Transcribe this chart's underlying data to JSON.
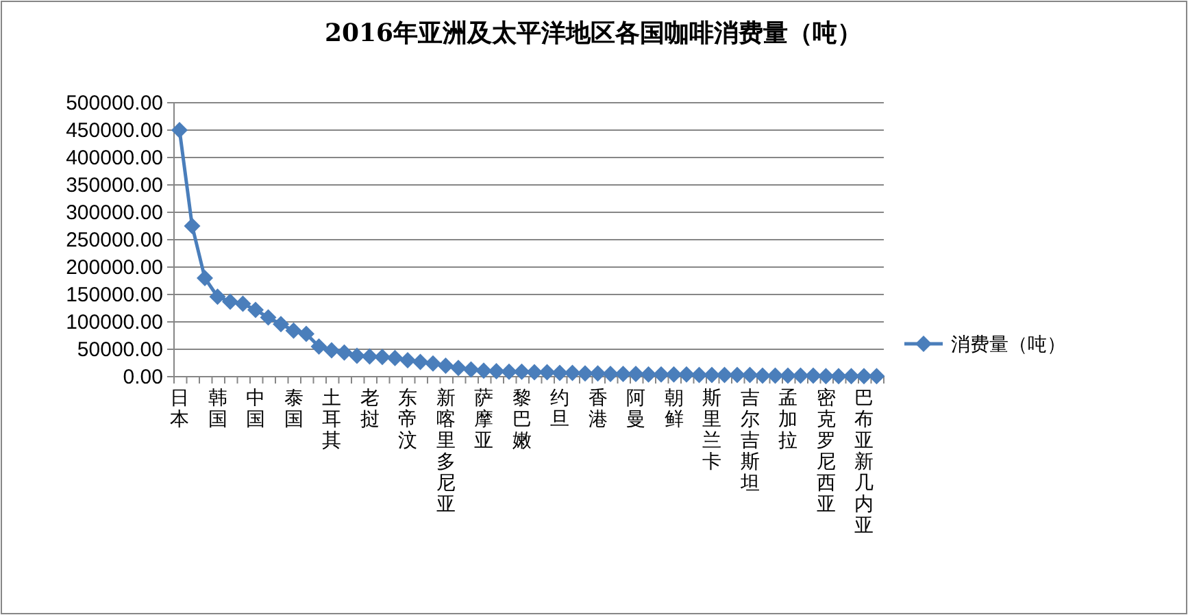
{
  "chart_data": {
    "type": "line",
    "title": "2016年亚洲及太平洋地区各国咖啡消费量（吨）",
    "categories": [
      "日本",
      null,
      null,
      "韩国",
      null,
      null,
      "中国",
      null,
      null,
      "泰国",
      null,
      null,
      "土耳其",
      null,
      null,
      "老挝",
      null,
      null,
      "东帝汶",
      null,
      null,
      "新喀里多尼亚",
      null,
      null,
      "萨摩亚",
      null,
      null,
      "黎巴嫩",
      null,
      null,
      "约旦",
      null,
      null,
      "香港",
      null,
      null,
      "阿曼",
      null,
      null,
      "朝鲜",
      null,
      null,
      "斯里兰卡",
      null,
      null,
      "吉尔吉斯坦",
      null,
      null,
      "孟加拉",
      null,
      null,
      "密克罗尼西亚",
      null,
      null,
      "巴布亚新几内亚",
      null
    ],
    "series": [
      {
        "name": "消费量（吨）",
        "color": "#4a7ebb",
        "values": [
          450000,
          275000,
          180000,
          146000,
          137000,
          133000,
          122000,
          108000,
          96000,
          84000,
          78000,
          55000,
          48000,
          44000,
          38000,
          37000,
          36000,
          34000,
          30000,
          27000,
          24000,
          20000,
          16000,
          13000,
          11000,
          10000,
          9000,
          9000,
          8000,
          8000,
          7000,
          7000,
          6000,
          6000,
          5000,
          5000,
          5000,
          4000,
          4000,
          4000,
          4000,
          3000,
          3000,
          3000,
          3000,
          3000,
          2000,
          2000,
          2000,
          2000,
          2000,
          1000,
          1000,
          1000,
          1000,
          1000
        ]
      }
    ],
    "ylim": [
      0,
      500000
    ],
    "yticks": [
      {
        "value": 0,
        "label": "0.00"
      },
      {
        "value": 50000,
        "label": "50000.00"
      },
      {
        "value": 100000,
        "label": "100000.00"
      },
      {
        "value": 150000,
        "label": "150000.00"
      },
      {
        "value": 200000,
        "label": "200000.00"
      },
      {
        "value": 250000,
        "label": "250000.00"
      },
      {
        "value": 300000,
        "label": "300000.00"
      },
      {
        "value": 350000,
        "label": "350000.00"
      },
      {
        "value": 400000,
        "label": "400000.00"
      },
      {
        "value": 450000,
        "label": "450000.00"
      },
      {
        "value": 500000,
        "label": "500000.00"
      }
    ],
    "grid": "y",
    "legend": "right",
    "marker": "diamond",
    "line_style": "solid"
  }
}
